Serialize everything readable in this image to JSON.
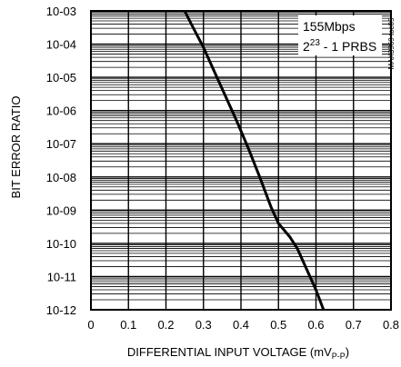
{
  "chart_data": {
    "type": "line",
    "xlabel_main": "DIFFERENTIAL INPUT VOLTAGE (mV",
    "xlabel_sub": "P-P",
    "xlabel_close": ")",
    "ylabel": "BIT ERROR RATIO",
    "x_ticks": [
      "0",
      "0.1",
      "0.2",
      "0.3",
      "0.4",
      "0.5",
      "0.6",
      "0.7",
      "0.8"
    ],
    "y_ticks": [
      "10-03",
      "10-04",
      "10-05",
      "10-06",
      "10-07",
      "10-08",
      "10-09",
      "10-10",
      "10-11",
      "10-12"
    ],
    "xlim": [
      0,
      0.8
    ],
    "ylim_exponent": [
      -12,
      -3
    ],
    "y_scale": "log",
    "grid": true,
    "legend": {
      "line1": "155Mbps",
      "line2_base": "2",
      "line2_sup": "23",
      "line2_rest": " - 1 PRBS",
      "placement": "top-right"
    },
    "side_tag": "MAX3969 toc05",
    "series": [
      {
        "x": [
          0.25,
          0.27,
          0.3,
          0.33,
          0.36,
          0.39,
          0.42,
          0.45,
          0.48,
          0.5,
          0.53,
          0.55,
          0.58,
          0.6,
          0.62
        ],
        "y_exponent": [
          -3.0,
          -3.45,
          -4.1,
          -4.85,
          -5.6,
          -6.35,
          -7.15,
          -8.0,
          -8.9,
          -9.4,
          -9.8,
          -10.15,
          -10.9,
          -11.4,
          -12.0
        ]
      }
    ],
    "colors": {
      "line": "#000000",
      "grid": "#000000",
      "background": "#ffffff"
    }
  }
}
